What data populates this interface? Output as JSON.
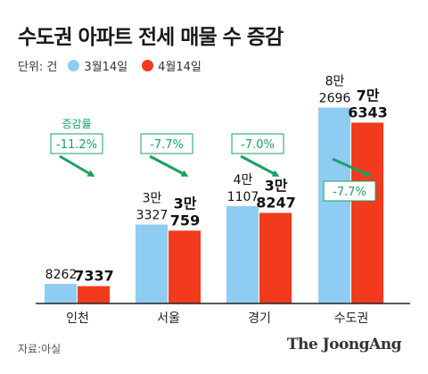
{
  "title": "수도권 아파트 전세 매물 수 증감",
  "unit_label": "단위: 건",
  "source": "자료:아실",
  "brand": "The JoongAng",
  "colors": {
    "march": "#8ECDF1",
    "april": "#F23A1C",
    "arrow": "#1AA160"
  },
  "change_caption": "증감률",
  "chart_data": {
    "type": "bar",
    "categories": [
      "인천",
      "서울",
      "경기",
      "수도권"
    ],
    "series": [
      {
        "name": "3월14일",
        "values": [
          8262,
          33327,
          41107,
          82696
        ]
      },
      {
        "name": "4월14일",
        "values": [
          7337,
          30759,
          38247,
          76343
        ]
      }
    ],
    "value_labels": {
      "march": [
        [
          "8262"
        ],
        [
          "3만",
          "3327"
        ],
        [
          "4만",
          "1107"
        ],
        [
          "8만",
          "2696"
        ]
      ],
      "april": [
        [
          "7337"
        ],
        [
          "3만",
          "759"
        ],
        [
          "3만",
          "8247"
        ],
        [
          "7만",
          "6343"
        ]
      ]
    },
    "changes": [
      "-11.2%",
      "-7.7%",
      "-7.0%",
      "-7.7%"
    ],
    "ylim": [
      0,
      90000
    ],
    "legend": "top-left"
  }
}
